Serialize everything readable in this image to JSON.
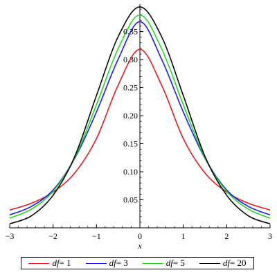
{
  "chart_data": {
    "type": "line",
    "xlabel": "x",
    "ylabel": "",
    "xlim": [
      -3,
      3
    ],
    "ylim": [
      0.0,
      0.3989
    ],
    "x_ticks": [
      -3,
      -2,
      -1,
      0,
      1,
      2,
      3
    ],
    "x_tick_labels": [
      "−3",
      "−2",
      "−1",
      "0",
      "1",
      "2",
      "3"
    ],
    "y_ticks": [
      0.05,
      0.1,
      0.15,
      0.2,
      0.25,
      0.3,
      0.35
    ],
    "y_tick_labels": [
      "0.05",
      "0.10",
      "0.15",
      "0.20",
      "0.25",
      "0.30",
      "0.35"
    ],
    "grid": false,
    "legend_position": "bottom",
    "legend_var": "df",
    "legend_eq": "= ",
    "series": [
      {
        "name": "df= 1",
        "df": 1,
        "df_label": "1",
        "color": "#e8171b",
        "x": [
          -3,
          -2.5,
          -2,
          -1.5,
          -1,
          -0.5,
          0,
          0.5,
          1,
          1.5,
          2,
          2.5,
          3
        ],
        "y": [
          0.0318,
          0.0439,
          0.0637,
          0.0979,
          0.1592,
          0.2546,
          0.3183,
          0.2546,
          0.1592,
          0.0979,
          0.0637,
          0.0439,
          0.0318
        ]
      },
      {
        "name": "df= 3",
        "df": 3,
        "df_label": "3",
        "color": "#1a1aff",
        "x": [
          -3,
          -2.5,
          -2,
          -1.5,
          -1,
          -0.5,
          0,
          0.5,
          1,
          1.5,
          2,
          2.5,
          3
        ],
        "y": [
          0.023,
          0.0382,
          0.0675,
          0.1239,
          0.2067,
          0.3007,
          0.3676,
          0.3007,
          0.2067,
          0.1239,
          0.0675,
          0.0382,
          0.023
        ]
      },
      {
        "name": "df= 5",
        "df": 5,
        "df_label": "5",
        "color": "#1edc1e",
        "x": [
          -3,
          -2.5,
          -2,
          -1.5,
          -1,
          -0.5,
          0,
          0.5,
          1,
          1.5,
          2,
          2.5,
          3
        ],
        "y": [
          0.0173,
          0.0332,
          0.0651,
          0.1245,
          0.2197,
          0.3196,
          0.3796,
          0.3196,
          0.2197,
          0.1245,
          0.0651,
          0.0332,
          0.0173
        ]
      },
      {
        "name": "df= 20",
        "df": 20,
        "df_label": "20",
        "color": "#000000",
        "x": [
          -3,
          -2.5,
          -2,
          -1.5,
          -1,
          -0.5,
          0,
          0.5,
          1,
          1.5,
          2,
          2.5,
          3
        ],
        "y": [
          0.0072,
          0.0214,
          0.0581,
          0.1273,
          0.236,
          0.3411,
          0.394,
          0.3411,
          0.236,
          0.1273,
          0.0581,
          0.0214,
          0.0072
        ]
      }
    ]
  }
}
